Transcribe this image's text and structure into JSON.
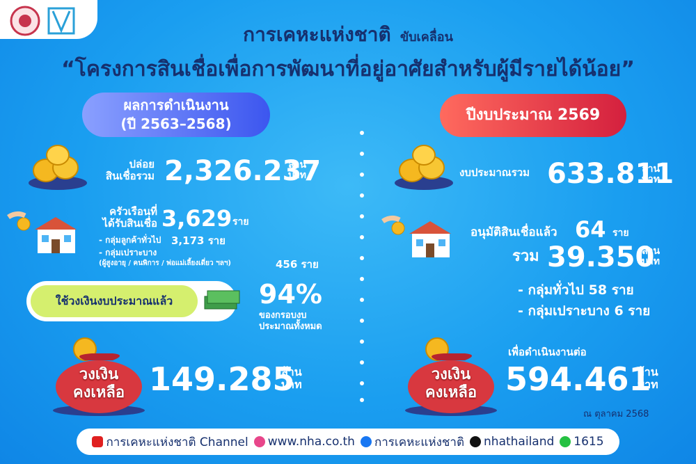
{
  "header": {
    "org": "การเคหะแห่งชาติ",
    "verb": "ขับเคลื่อน",
    "title": "“โครงการสินเชื่อเพื่อการพัฒนาที่อยู่อาศัยสำหรับผู้มีรายได้น้อย”"
  },
  "left": {
    "heading": [
      "ผลการดำเนินงาน",
      "(ปี 2563–2568)"
    ],
    "loans": {
      "label": [
        "ปล่อย",
        "สินเชื่อรวม"
      ],
      "value": "2,326.237",
      "unit": [
        "ล้าน",
        "บาท"
      ]
    },
    "households": {
      "label": [
        "ครัวเรือนที่",
        "ได้รับสินเชื่อ"
      ],
      "value": "3,629",
      "unit": "ราย",
      "groups": [
        {
          "label": "- กลุ่มลูกค้าทั่วไป",
          "value": "3,173",
          "unit": "ราย"
        },
        {
          "label": "- กลุ่มเปราะบาง",
          "note": "(ผู้สูงอายุ / คนพิการ / พ่อแม่เลี้ยงเดี่ยว ฯลฯ)",
          "value": "456",
          "unit": "ราย"
        }
      ]
    },
    "budget_used": {
      "label": "ใช้วงเงินงบประมาณแล้ว",
      "value": "94%",
      "caption": [
        "ของกรอบงบ",
        "ประมาณทั้งหมด"
      ]
    },
    "remaining": {
      "bag": [
        "วงเงิน",
        "คงเหลือ"
      ],
      "value": "149.285",
      "unit": [
        "ล้าน",
        "บาท"
      ]
    }
  },
  "right": {
    "heading": "ปีงบประมาณ 2569",
    "budget": {
      "label": "งบประมาณรวม",
      "value": "633.811",
      "unit": [
        "ล้าน",
        "บาท"
      ]
    },
    "approved": {
      "label": "อนุมัติสินเชื่อแล้ว",
      "value": "64",
      "unit": "ราย",
      "total_label": "รวม",
      "total_value": "39.350",
      "total_unit": [
        "ล้าน",
        "บาท"
      ],
      "groups": [
        {
          "label": "- กลุ่มทั่วไป",
          "value": "58",
          "unit": "ราย"
        },
        {
          "label": "- กลุ่มเปราะบาง",
          "value": "6",
          "unit": "ราย"
        }
      ]
    },
    "remaining": {
      "caption": "เพื่อดำเนินงานต่อ",
      "bag": [
        "วงเงิน",
        "คงเหลือ"
      ],
      "value": "594.461",
      "unit": [
        "ล้าน",
        "บาท"
      ]
    },
    "as_of": "ณ ตุลาคม 2568"
  },
  "footer": {
    "items": [
      "การเคหะแห่งชาติ Channel",
      "www.nha.co.th",
      "การเคหะแห่งชาติ",
      "nhathailand",
      "1615"
    ]
  }
}
